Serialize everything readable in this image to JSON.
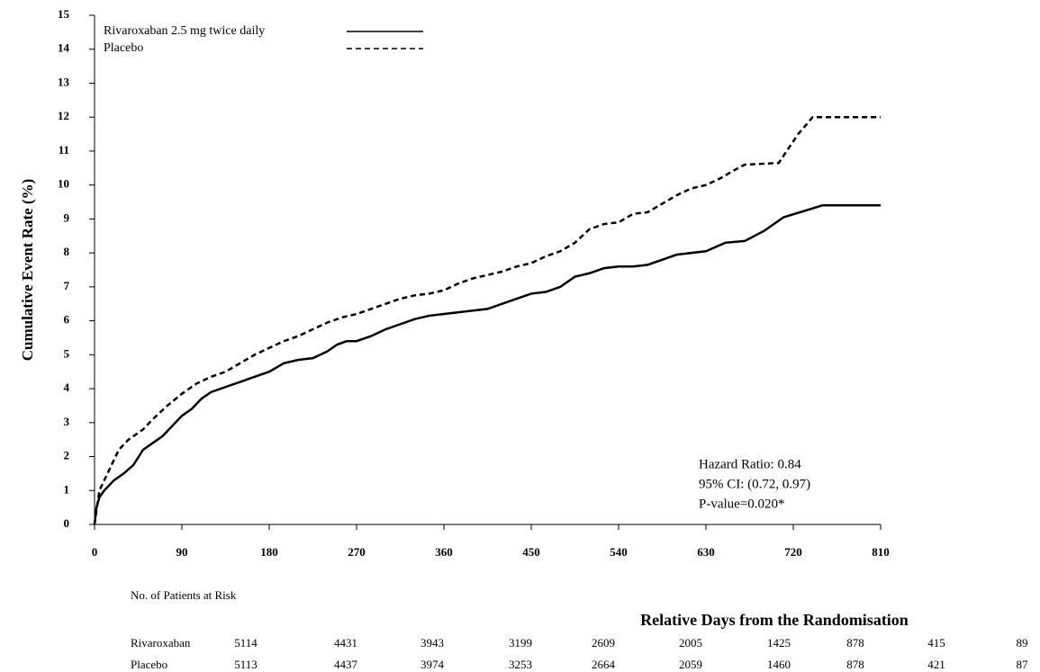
{
  "chart_data": {
    "type": "line",
    "y_label": "Cumulative Event Rate (%)",
    "x_label": "Relative Days from the Randomisation",
    "xlim": [
      0,
      810
    ],
    "xticks": [
      0,
      90,
      180,
      270,
      360,
      450,
      540,
      630,
      720,
      810
    ],
    "ylim": [
      0,
      15
    ],
    "yticks": [
      0,
      1,
      2,
      3,
      4,
      5,
      6,
      7,
      8,
      9,
      10,
      11,
      12,
      13,
      14,
      15
    ],
    "legend_position": "upper left",
    "series": [
      {
        "name": "Rivaroxaban 2.5 mg twice daily",
        "color": "#000000",
        "line_style": "solid",
        "x": [
          0,
          2,
          5,
          10,
          20,
          30,
          40,
          50,
          60,
          70,
          80,
          90,
          100,
          110,
          120,
          135,
          150,
          165,
          180,
          195,
          210,
          225,
          240,
          250,
          260,
          270,
          285,
          300,
          315,
          330,
          345,
          360,
          375,
          390,
          405,
          420,
          435,
          450,
          465,
          480,
          495,
          510,
          525,
          540,
          555,
          570,
          585,
          600,
          630,
          650,
          670,
          690,
          710,
          750,
          810
        ],
        "values": [
          0,
          0.5,
          0.8,
          1.0,
          1.3,
          1.5,
          1.75,
          2.2,
          2.4,
          2.6,
          2.9,
          3.2,
          3.4,
          3.7,
          3.9,
          4.05,
          4.2,
          4.35,
          4.5,
          4.75,
          4.85,
          4.9,
          5.1,
          5.3,
          5.4,
          5.4,
          5.55,
          5.75,
          5.9,
          6.05,
          6.15,
          6.2,
          6.25,
          6.3,
          6.35,
          6.5,
          6.65,
          6.8,
          6.85,
          7.0,
          7.3,
          7.4,
          7.55,
          7.6,
          7.6,
          7.65,
          7.8,
          7.95,
          8.05,
          8.3,
          8.35,
          8.65,
          9.05,
          9.4,
          9.4
        ]
      },
      {
        "name": "Placebo",
        "color": "#000000",
        "line_style": "dashed",
        "x": [
          0,
          5,
          15,
          25,
          35,
          50,
          60,
          75,
          90,
          105,
          120,
          135,
          150,
          165,
          180,
          195,
          210,
          225,
          240,
          255,
          270,
          285,
          300,
          315,
          330,
          345,
          360,
          375,
          390,
          405,
          420,
          435,
          450,
          465,
          480,
          495,
          510,
          525,
          540,
          555,
          570,
          585,
          600,
          615,
          630,
          645,
          660,
          670,
          705,
          725,
          740,
          810
        ],
        "values": [
          0,
          1.0,
          1.6,
          2.2,
          2.5,
          2.8,
          3.1,
          3.5,
          3.85,
          4.15,
          4.35,
          4.5,
          4.75,
          5.0,
          5.2,
          5.4,
          5.55,
          5.75,
          5.95,
          6.1,
          6.2,
          6.35,
          6.5,
          6.65,
          6.75,
          6.8,
          6.9,
          7.1,
          7.25,
          7.35,
          7.45,
          7.6,
          7.7,
          7.9,
          8.05,
          8.3,
          8.7,
          8.85,
          8.9,
          9.15,
          9.2,
          9.45,
          9.7,
          9.9,
          10.0,
          10.2,
          10.45,
          10.6,
          10.65,
          11.5,
          12.0,
          12.0
        ]
      }
    ],
    "annotations": [
      "Hazard Ratio: 0.84",
      "95% CI:  (0.72, 0.97)",
      "P-value=0.020*"
    ],
    "risk_table": {
      "title": "No. of Patients at Risk",
      "rows": [
        {
          "name": "Rivaroxaban",
          "values": [
            5114,
            4431,
            3943,
            3199,
            2609,
            2005,
            1425,
            878,
            415,
            89
          ]
        },
        {
          "name": "Placebo",
          "values": [
            5113,
            4437,
            3974,
            3253,
            2664,
            2059,
            1460,
            878,
            421,
            87
          ]
        }
      ]
    }
  }
}
